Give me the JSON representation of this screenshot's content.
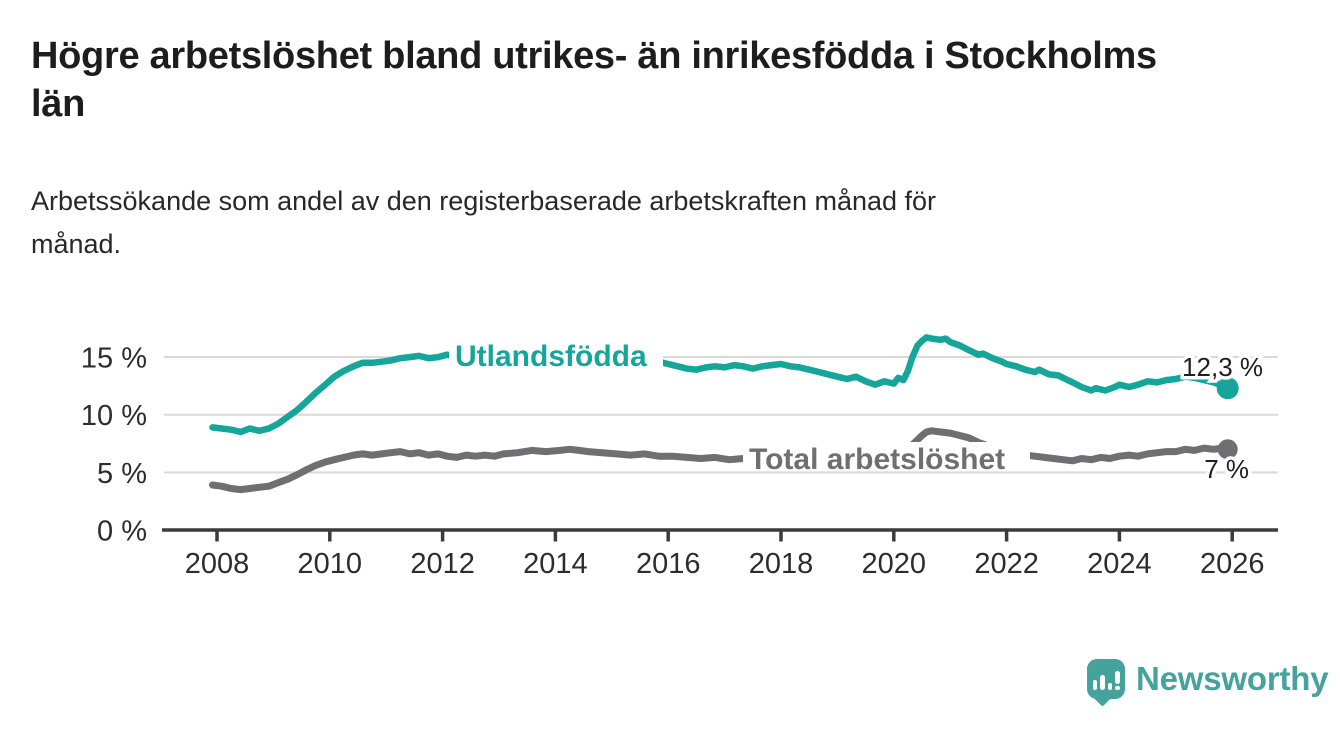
{
  "header": {
    "title": "Högre arbetslöshet bland utrikes- än inrikesfödda i Stockholms län",
    "subtitle": "Arbetssökande som andel av den registerbaserade arbetskraften månad för månad."
  },
  "footer": {
    "brand": "Newsworthy"
  },
  "colors": {
    "accent_teal": "#16a59a",
    "line_gray": "#6e6e73",
    "grid": "#d9d9d9",
    "axis": "#3b3b3b",
    "text_dark": "#1d1d1d",
    "tick_text": "#2d2d2d",
    "logo_teal": "#45a29c",
    "background": "#ffffff"
  },
  "chart_data": {
    "type": "line",
    "title": "Högre arbetslöshet bland utrikes- än inrikesfödda i Stockholms län",
    "subtitle": "Arbetssökande som andel av den registerbaserade arbetskraften månad för månad.",
    "xlabel": "",
    "ylabel": "",
    "unit": "%",
    "grid": "horizontal",
    "legend_position": "inline-labels",
    "x_axis": {
      "range": [
        2007.1,
        2026.85
      ],
      "ticks": [
        {
          "year": 2008,
          "label": "2008"
        },
        {
          "year": 2010,
          "label": "2010"
        },
        {
          "year": 2012,
          "label": "2012"
        },
        {
          "year": 2014,
          "label": "2014"
        },
        {
          "year": 2016,
          "label": "2016"
        },
        {
          "year": 2018,
          "label": "2018"
        },
        {
          "year": 2020,
          "label": "2020"
        },
        {
          "year": 2022,
          "label": "2022"
        },
        {
          "year": 2024,
          "label": "2024"
        },
        {
          "year": 2026,
          "label": "2026"
        }
      ]
    },
    "y_axis": {
      "range": [
        0,
        17.5
      ],
      "ticks": [
        {
          "value": 15,
          "label": "15 %"
        },
        {
          "value": 10,
          "label": "10 %"
        },
        {
          "value": 5,
          "label": "5 %"
        },
        {
          "value": 0,
          "label": "0 %"
        }
      ]
    },
    "series": [
      {
        "name": "Utlandsfödda",
        "color": "#16a59a",
        "end_label": "12,3 %",
        "end_value": 12.3,
        "points": [
          [
            2007.92,
            8.9
          ],
          [
            2008.08,
            8.8
          ],
          [
            2008.25,
            8.7
          ],
          [
            2008.42,
            8.5
          ],
          [
            2008.58,
            8.8
          ],
          [
            2008.75,
            8.6
          ],
          [
            2008.92,
            8.8
          ],
          [
            2009.08,
            9.2
          ],
          [
            2009.25,
            9.8
          ],
          [
            2009.42,
            10.4
          ],
          [
            2009.58,
            11.1
          ],
          [
            2009.75,
            11.9
          ],
          [
            2009.92,
            12.6
          ],
          [
            2010.08,
            13.3
          ],
          [
            2010.25,
            13.8
          ],
          [
            2010.42,
            14.2
          ],
          [
            2010.58,
            14.5
          ],
          [
            2010.75,
            14.5
          ],
          [
            2010.92,
            14.6
          ],
          [
            2011.08,
            14.7
          ],
          [
            2011.25,
            14.9
          ],
          [
            2011.42,
            15.0
          ],
          [
            2011.58,
            15.1
          ],
          [
            2011.75,
            14.9
          ],
          [
            2011.92,
            15.0
          ],
          [
            2012.08,
            15.2
          ],
          [
            2012.25,
            15.0
          ],
          [
            2012.42,
            15.1
          ],
          [
            2012.58,
            15.0
          ],
          [
            2012.75,
            14.9
          ],
          [
            2012.92,
            15.0
          ],
          [
            2013.08,
            14.9
          ],
          [
            2013.33,
            14.8
          ],
          [
            2013.58,
            14.9
          ],
          [
            2013.83,
            14.8
          ],
          [
            2014.08,
            14.7
          ],
          [
            2014.33,
            14.6
          ],
          [
            2014.58,
            14.7
          ],
          [
            2014.83,
            14.5
          ],
          [
            2015.08,
            14.5
          ],
          [
            2015.33,
            14.4
          ],
          [
            2015.58,
            14.5
          ],
          [
            2015.83,
            14.6
          ],
          [
            2016.0,
            14.4
          ],
          [
            2016.17,
            14.2
          ],
          [
            2016.33,
            14.0
          ],
          [
            2016.5,
            13.9
          ],
          [
            2016.67,
            14.1
          ],
          [
            2016.83,
            14.2
          ],
          [
            2017.0,
            14.1
          ],
          [
            2017.17,
            14.3
          ],
          [
            2017.33,
            14.2
          ],
          [
            2017.5,
            14.0
          ],
          [
            2017.67,
            14.2
          ],
          [
            2017.83,
            14.3
          ],
          [
            2018.0,
            14.4
          ],
          [
            2018.17,
            14.2
          ],
          [
            2018.33,
            14.1
          ],
          [
            2018.5,
            13.9
          ],
          [
            2018.67,
            13.7
          ],
          [
            2018.83,
            13.5
          ],
          [
            2019.0,
            13.3
          ],
          [
            2019.17,
            13.1
          ],
          [
            2019.33,
            13.3
          ],
          [
            2019.5,
            12.9
          ],
          [
            2019.67,
            12.6
          ],
          [
            2019.83,
            12.9
          ],
          [
            2020.0,
            12.7
          ],
          [
            2020.08,
            13.2
          ],
          [
            2020.17,
            13.0
          ],
          [
            2020.25,
            13.8
          ],
          [
            2020.33,
            15.0
          ],
          [
            2020.42,
            16.0
          ],
          [
            2020.5,
            16.4
          ],
          [
            2020.58,
            16.7
          ],
          [
            2020.67,
            16.6
          ],
          [
            2020.83,
            16.5
          ],
          [
            2020.92,
            16.6
          ],
          [
            2021.0,
            16.3
          ],
          [
            2021.17,
            16.0
          ],
          [
            2021.33,
            15.6
          ],
          [
            2021.5,
            15.2
          ],
          [
            2021.58,
            15.3
          ],
          [
            2021.75,
            14.9
          ],
          [
            2021.92,
            14.6
          ],
          [
            2022.0,
            14.4
          ],
          [
            2022.17,
            14.2
          ],
          [
            2022.33,
            13.9
          ],
          [
            2022.5,
            13.7
          ],
          [
            2022.58,
            13.9
          ],
          [
            2022.75,
            13.5
          ],
          [
            2022.92,
            13.4
          ],
          [
            2023.0,
            13.2
          ],
          [
            2023.17,
            12.8
          ],
          [
            2023.33,
            12.4
          ],
          [
            2023.5,
            12.1
          ],
          [
            2023.58,
            12.3
          ],
          [
            2023.75,
            12.1
          ],
          [
            2023.92,
            12.4
          ],
          [
            2024.0,
            12.6
          ],
          [
            2024.17,
            12.4
          ],
          [
            2024.33,
            12.6
          ],
          [
            2024.5,
            12.9
          ],
          [
            2024.67,
            12.8
          ],
          [
            2024.83,
            13.0
          ],
          [
            2025.0,
            13.1
          ],
          [
            2025.17,
            13.3
          ],
          [
            2025.33,
            13.2
          ],
          [
            2025.5,
            13.0
          ],
          [
            2025.67,
            12.8
          ],
          [
            2025.83,
            12.5
          ],
          [
            2025.92,
            12.3
          ]
        ]
      },
      {
        "name": "Total arbetslöshet",
        "color": "#6e6e73",
        "end_label": "7 %",
        "end_value": 7.0,
        "points": [
          [
            2007.92,
            3.9
          ],
          [
            2008.08,
            3.8
          ],
          [
            2008.25,
            3.6
          ],
          [
            2008.42,
            3.5
          ],
          [
            2008.58,
            3.6
          ],
          [
            2008.75,
            3.7
          ],
          [
            2008.92,
            3.8
          ],
          [
            2009.08,
            4.1
          ],
          [
            2009.25,
            4.4
          ],
          [
            2009.42,
            4.8
          ],
          [
            2009.58,
            5.2
          ],
          [
            2009.75,
            5.6
          ],
          [
            2009.92,
            5.9
          ],
          [
            2010.08,
            6.1
          ],
          [
            2010.25,
            6.3
          ],
          [
            2010.42,
            6.5
          ],
          [
            2010.58,
            6.6
          ],
          [
            2010.75,
            6.5
          ],
          [
            2010.92,
            6.6
          ],
          [
            2011.08,
            6.7
          ],
          [
            2011.25,
            6.8
          ],
          [
            2011.42,
            6.6
          ],
          [
            2011.58,
            6.7
          ],
          [
            2011.75,
            6.5
          ],
          [
            2011.92,
            6.6
          ],
          [
            2012.08,
            6.4
          ],
          [
            2012.25,
            6.3
          ],
          [
            2012.42,
            6.5
          ],
          [
            2012.58,
            6.4
          ],
          [
            2012.75,
            6.5
          ],
          [
            2012.92,
            6.4
          ],
          [
            2013.08,
            6.6
          ],
          [
            2013.33,
            6.7
          ],
          [
            2013.58,
            6.9
          ],
          [
            2013.83,
            6.8
          ],
          [
            2014.08,
            6.9
          ],
          [
            2014.25,
            7.0
          ],
          [
            2014.42,
            6.9
          ],
          [
            2014.58,
            6.8
          ],
          [
            2014.83,
            6.7
          ],
          [
            2015.08,
            6.6
          ],
          [
            2015.33,
            6.5
          ],
          [
            2015.58,
            6.6
          ],
          [
            2015.83,
            6.4
          ],
          [
            2016.08,
            6.4
          ],
          [
            2016.33,
            6.3
          ],
          [
            2016.58,
            6.2
          ],
          [
            2016.83,
            6.3
          ],
          [
            2017.08,
            6.1
          ],
          [
            2017.33,
            6.2
          ],
          [
            2017.58,
            6.0
          ],
          [
            2017.83,
            6.0
          ],
          [
            2018.08,
            5.9
          ],
          [
            2018.33,
            5.8
          ],
          [
            2018.58,
            5.8
          ],
          [
            2018.83,
            5.7
          ],
          [
            2019.08,
            5.6
          ],
          [
            2019.33,
            5.6
          ],
          [
            2019.58,
            5.5
          ],
          [
            2019.83,
            5.6
          ],
          [
            2020.0,
            5.8
          ],
          [
            2020.17,
            6.3
          ],
          [
            2020.33,
            7.4
          ],
          [
            2020.5,
            8.2
          ],
          [
            2020.58,
            8.5
          ],
          [
            2020.67,
            8.6
          ],
          [
            2020.83,
            8.5
          ],
          [
            2021.0,
            8.4
          ],
          [
            2021.17,
            8.2
          ],
          [
            2021.33,
            8.0
          ],
          [
            2021.5,
            7.6
          ],
          [
            2021.67,
            7.3
          ],
          [
            2021.83,
            7.1
          ],
          [
            2022.0,
            6.9
          ],
          [
            2022.17,
            6.7
          ],
          [
            2022.33,
            6.5
          ],
          [
            2022.5,
            6.4
          ],
          [
            2022.67,
            6.3
          ],
          [
            2022.83,
            6.2
          ],
          [
            2023.0,
            6.1
          ],
          [
            2023.17,
            6.0
          ],
          [
            2023.33,
            6.2
          ],
          [
            2023.5,
            6.1
          ],
          [
            2023.67,
            6.3
          ],
          [
            2023.83,
            6.2
          ],
          [
            2024.0,
            6.4
          ],
          [
            2024.17,
            6.5
          ],
          [
            2024.33,
            6.4
          ],
          [
            2024.5,
            6.6
          ],
          [
            2024.67,
            6.7
          ],
          [
            2024.83,
            6.8
          ],
          [
            2025.0,
            6.8
          ],
          [
            2025.17,
            7.0
          ],
          [
            2025.33,
            6.9
          ],
          [
            2025.5,
            7.1
          ],
          [
            2025.67,
            7.0
          ],
          [
            2025.83,
            7.1
          ],
          [
            2025.92,
            7.0
          ]
        ]
      }
    ]
  }
}
